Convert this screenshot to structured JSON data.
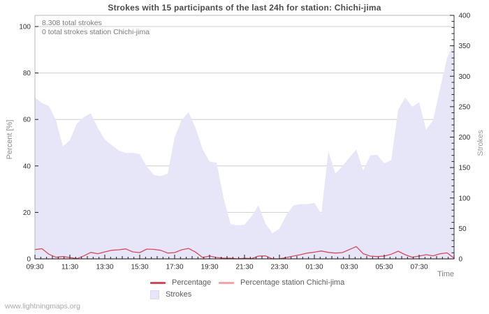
{
  "page": {
    "watermark": "www.lightningmaps.org"
  },
  "chart_data": {
    "type": "area",
    "title": "Strokes with 15 participants of the last 24h for station: Chichi-jima",
    "annotations": [
      "8.308 total strokes",
      "0 total strokes station Chichi-jima"
    ],
    "totals": {
      "total_strokes": "8.308",
      "station_total_strokes": "0"
    },
    "xlabel": "Time",
    "ylabel_left": "Percent  [%]",
    "ylabel_right": "Strokes",
    "x_ticks": [
      "09:30",
      "11:30",
      "13:30",
      "15:30",
      "17:30",
      "19:30",
      "21:30",
      "23:30",
      "01:30",
      "03:30",
      "05:30",
      "07:30"
    ],
    "x_tick_interval_minutes": 120,
    "x_minor_tick_minutes": 20,
    "x_total_minutes": 1440,
    "y_left_ticks": [
      0,
      20,
      40,
      60,
      80,
      100
    ],
    "y_left_range": [
      0,
      100
    ],
    "y_right_ticks": [
      0,
      50,
      100,
      150,
      200,
      250,
      300,
      350,
      400
    ],
    "y_right_minor_step": 10,
    "y_right_range": [
      0,
      400
    ],
    "grid": true,
    "legend_position": "bottom",
    "start_time": "09:30",
    "sample_interval_minutes": 24,
    "series": [
      {
        "name": "Strokes",
        "type": "area",
        "axis": "right",
        "color": "#e6e6f8",
        "values": [
          265,
          256,
          251,
          228,
          185,
          195,
          222,
          233,
          239,
          215,
          196,
          187,
          178,
          174,
          174,
          172,
          152,
          138,
          136,
          140,
          200,
          228,
          241,
          215,
          180,
          160,
          158,
          100,
          57,
          55,
          56,
          70,
          88,
          58,
          42,
          50,
          72,
          88,
          90,
          90,
          92,
          74,
          177,
          140,
          152,
          166,
          180,
          145,
          170,
          171,
          157,
          162,
          245,
          265,
          250,
          257,
          212,
          228,
          280,
          330,
          356
        ]
      },
      {
        "name": "Percentage",
        "type": "line",
        "axis": "left",
        "color": "#d14b5d",
        "values": [
          4.0,
          4.4,
          2.0,
          0.7,
          1.0,
          0.6,
          0.1,
          1.3,
          2.8,
          2.2,
          3.0,
          3.7,
          3.9,
          4.3,
          3.0,
          2.7,
          4.2,
          4.1,
          3.7,
          2.5,
          2.7,
          3.9,
          4.5,
          2.9,
          0.6,
          1.2,
          0.6,
          0.3,
          0.3,
          0.0,
          0.3,
          0.1,
          1.2,
          1.3,
          0.0,
          0.0,
          0.6,
          1.2,
          1.8,
          2.5,
          2.9,
          3.4,
          2.8,
          2.5,
          2.7,
          4.0,
          5.3,
          2.2,
          1.2,
          1.0,
          1.2,
          2.0,
          3.3,
          1.8,
          0.7,
          1.2,
          1.8,
          1.3,
          2.2,
          2.6,
          0.3
        ]
      },
      {
        "name": "Percentage station Chichi-jima",
        "type": "line",
        "axis": "left",
        "color": "#f4a5a8",
        "values": [
          0,
          0,
          0,
          0,
          0,
          0,
          0,
          0,
          0,
          0,
          0,
          0,
          0,
          0,
          0,
          0,
          0,
          0,
          0,
          0,
          0,
          0,
          0,
          0,
          0,
          0,
          0,
          0,
          0,
          0,
          0,
          0,
          0,
          0,
          0,
          0,
          0,
          0,
          0,
          0,
          0,
          0,
          0,
          0,
          0,
          0,
          0,
          0,
          0,
          0,
          0,
          0,
          0,
          0,
          0,
          0,
          0,
          0,
          0,
          0,
          0
        ]
      }
    ],
    "legend": [
      {
        "label": "Percentage",
        "swatch": "line",
        "color": "#d14b5d"
      },
      {
        "label": "Percentage station Chichi-jima",
        "swatch": "line",
        "color": "#f4a5a8"
      },
      {
        "label": "Strokes",
        "swatch": "square",
        "color": "#e6e6f8"
      }
    ],
    "colors": {
      "grid": "#cdcdcd",
      "plot_border": "#b8b8b8",
      "axis": "#1a1a1a",
      "tick_label": "#2e2e2e"
    }
  }
}
